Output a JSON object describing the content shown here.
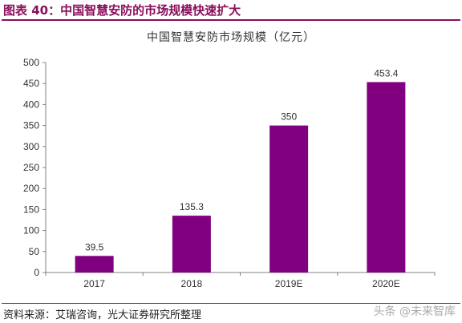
{
  "figure_title": "图表 40：中国智慧安防的市场规模快速扩大",
  "source_note": "资料来源：艾瑞咨询，光大证券研究所整理",
  "watermark": "头条 @未来智库",
  "colors": {
    "bar": "#800080",
    "accent": "#8a0f5c",
    "axis": "#808080"
  },
  "chart_data": {
    "type": "bar",
    "title": "中国智慧安防市场规模（亿元）",
    "categories": [
      "2017",
      "2018",
      "2019E",
      "2020E"
    ],
    "values": [
      39.5,
      135.3,
      350,
      453.4
    ],
    "value_labels": [
      "39.5",
      "135.3",
      "350",
      "453.4"
    ],
    "xlabel": "",
    "ylabel": "",
    "ylim": [
      0,
      500
    ],
    "yticks": [
      0,
      50,
      100,
      150,
      200,
      250,
      300,
      350,
      400,
      450,
      500
    ],
    "grid": false,
    "legend": "none"
  }
}
